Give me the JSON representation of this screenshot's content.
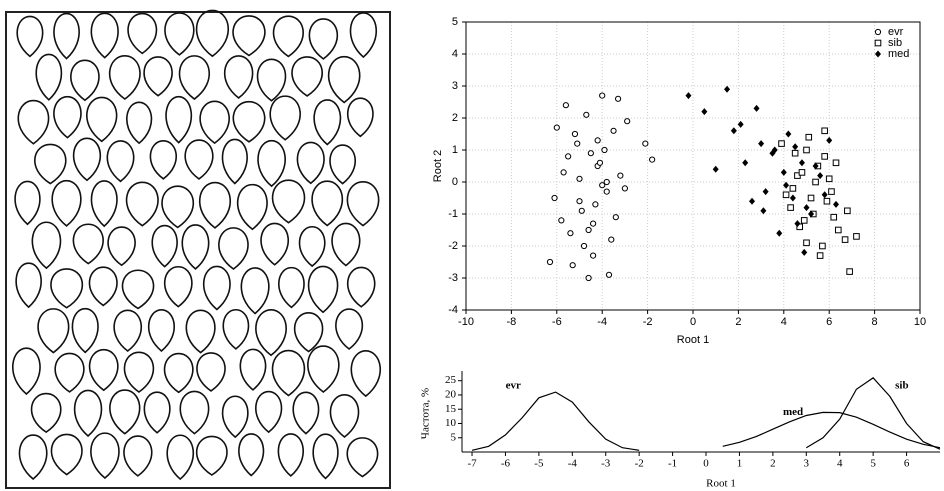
{
  "chart_data": [
    {
      "type": "scatter",
      "xlabel": "Root 1",
      "ylabel": "Root 2",
      "xlim": [
        -10,
        10
      ],
      "xticks": [
        -10,
        -8,
        -6,
        -4,
        -2,
        0,
        2,
        4,
        6,
        8,
        10
      ],
      "ylim": [
        -4,
        5
      ],
      "yticks": [
        -4,
        -3,
        -2,
        -1,
        0,
        1,
        2,
        3,
        4,
        5
      ],
      "grid": true,
      "legend": "upper right",
      "series": [
        {
          "name": "evr",
          "color": "#000000",
          "marker": "circle",
          "x": [
            -4.2,
            -5.1,
            -3.8,
            -4.6,
            -5.5,
            -3.5,
            -4.9,
            -4.0,
            -5.8,
            -3.2,
            -4.4,
            -5.0,
            -3.9,
            -6.1,
            -4.7,
            -3.6,
            -5.3,
            -4.1,
            -2.9,
            -5.7,
            -4.3,
            -3.4,
            -5.2,
            -4.8,
            -6.3,
            -3.0,
            -4.5,
            -5.6,
            -3.7,
            -4.0,
            -2.1,
            -1.8,
            -6.0,
            -4.6,
            -3.3,
            -5.4,
            -4.2,
            -3.8,
            -5.0,
            -4.4
          ],
          "values": [
            0.5,
            1.2,
            -0.3,
            -1.5,
            0.8,
            1.6,
            -0.9,
            2.7,
            -1.2,
            0.2,
            -2.3,
            0.1,
            1.0,
            -0.5,
            2.1,
            -1.8,
            -2.6,
            0.6,
            1.9,
            0.3,
            -0.7,
            -1.1,
            1.5,
            -2.0,
            -2.5,
            -0.2,
            0.9,
            2.4,
            -2.9,
            -0.1,
            1.2,
            0.7,
            1.7,
            -3.0,
            2.6,
            -1.6,
            1.3,
            0.0,
            -0.6,
            -1.3
          ]
        },
        {
          "name": "sib",
          "color": "#000000",
          "marker": "square",
          "x": [
            4.6,
            5.2,
            5.8,
            4.9,
            6.1,
            5.5,
            4.3,
            6.4,
            5.0,
            5.7,
            4.8,
            6.0,
            5.3,
            4.5,
            6.7,
            5.9,
            5.1,
            7.2,
            4.4,
            5.6,
            6.3,
            4.7,
            5.4,
            6.9,
            3.9,
            5.0,
            6.2,
            5.8,
            4.1,
            6.8
          ],
          "values": [
            0.2,
            -0.5,
            0.8,
            -1.2,
            -0.3,
            0.5,
            -0.8,
            -1.5,
            1.0,
            -2.0,
            0.3,
            0.1,
            -1.0,
            0.9,
            -1.8,
            -0.6,
            1.4,
            -1.7,
            -0.2,
            -2.3,
            0.6,
            -1.4,
            0.0,
            -2.8,
            1.2,
            -1.9,
            -1.1,
            1.6,
            -0.4,
            -0.9
          ]
        },
        {
          "name": "med",
          "color": "#000000",
          "marker": "diamond",
          "x": [
            -0.2,
            0.5,
            1.5,
            2.1,
            3.0,
            3.5,
            4.0,
            4.4,
            4.8,
            5.2,
            5.6,
            6.0,
            2.6,
            3.2,
            1.0,
            4.2,
            4.6,
            5.0,
            3.8,
            2.8,
            5.4,
            4.1,
            3.6,
            1.8,
            5.8,
            4.9,
            3.1,
            2.3,
            4.5,
            6.3
          ],
          "values": [
            2.7,
            2.2,
            2.9,
            1.8,
            1.2,
            0.9,
            0.3,
            -0.5,
            0.6,
            -1.0,
            0.2,
            1.3,
            -0.6,
            -0.3,
            0.4,
            1.5,
            -1.3,
            -0.8,
            -1.6,
            2.3,
            0.5,
            -0.1,
            1.0,
            1.6,
            -0.4,
            -2.2,
            -0.9,
            0.6,
            1.1,
            -0.7
          ]
        }
      ]
    },
    {
      "type": "line",
      "xlabel": "Root 1",
      "ylabel": "Частота, %",
      "xlim": [
        -7.3,
        7
      ],
      "xticks": [
        -7,
        -6,
        -5,
        -4,
        -3,
        -2,
        -1,
        0,
        1,
        2,
        3,
        4,
        5,
        6
      ],
      "ylim": [
        0,
        27
      ],
      "yticks": [
        5,
        10,
        15,
        20,
        25
      ],
      "x": [
        -7,
        -6.5,
        -6,
        -5.5,
        -5,
        -4.5,
        -4,
        -3.5,
        -3,
        -2.5,
        -2,
        -1.5,
        -1,
        -0.5,
        0,
        0.5,
        1,
        1.5,
        2,
        2.5,
        3,
        3.5,
        4,
        4.5,
        5,
        5.5,
        6,
        6.5,
        7
      ],
      "series": [
        {
          "name": "evr",
          "color": "#000000",
          "values": [
            0.6,
            2,
            6,
            12,
            19,
            21,
            17.5,
            10.5,
            4.5,
            1.5,
            0.6,
            null,
            null,
            null,
            null,
            null,
            null,
            null,
            null,
            null,
            null,
            null,
            null,
            null,
            null,
            null,
            null,
            null,
            null
          ]
        },
        {
          "name": "med",
          "color": "#000000",
          "values": [
            null,
            null,
            null,
            null,
            null,
            null,
            null,
            null,
            null,
            null,
            null,
            null,
            null,
            null,
            null,
            2.0,
            3.4,
            5.4,
            8,
            10.6,
            12.8,
            13.9,
            13.8,
            12.2,
            9.7,
            7,
            4.5,
            2.7,
            1.5
          ]
        },
        {
          "name": "sib",
          "color": "#000000",
          "values": [
            null,
            null,
            null,
            null,
            null,
            null,
            null,
            null,
            null,
            null,
            null,
            null,
            null,
            null,
            null,
            null,
            null,
            null,
            null,
            null,
            1.5,
            5,
            11.5,
            22,
            26,
            19.5,
            10,
            3.6,
            1
          ]
        }
      ]
    }
  ]
}
